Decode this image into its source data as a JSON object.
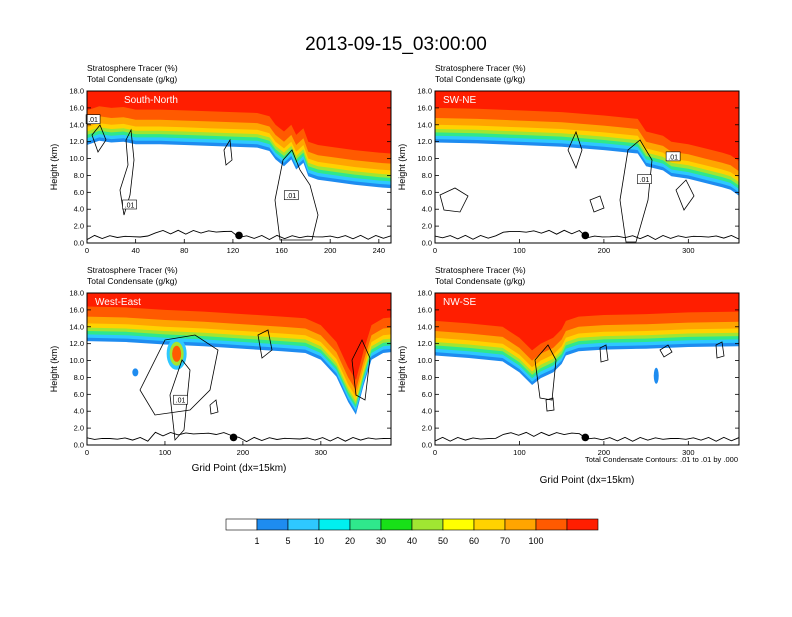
{
  "title": "2013-09-15_03:00:00",
  "colors": {
    "levels": [
      "#ffffff",
      "#1e8cf0",
      "#2ec8ff",
      "#00f0f0",
      "#2fe88c",
      "#18e018",
      "#a0e632",
      "#ffff00",
      "#ffd200",
      "#ffa500",
      "#ff5a00",
      "#ff1e00"
    ],
    "contour": "#000000",
    "marker": "#000000"
  },
  "legend": {
    "labels": [
      "1",
      "5",
      "10",
      "20",
      "30",
      "40",
      "50",
      "60",
      "70",
      "100"
    ]
  },
  "contour_note": "Total Condensate Contours: .01 to .01 by .000",
  "chart_data": [
    {
      "type": "heatmap",
      "panel": "South-North",
      "label1": "Stratosphere Tracer   (%)",
      "label2": "Total Condensate   (g/kg)",
      "ylabel": "Height (km)",
      "xlabel": "",
      "xlim": [
        0,
        250
      ],
      "ylim": [
        0,
        18
      ],
      "xticks": [
        "0",
        "40",
        "80",
        "120",
        "160",
        "200",
        "240"
      ],
      "yticks": [
        "0.0",
        "2.0",
        "4.0",
        "6.0",
        "8.0",
        "10.0",
        "12.0",
        "14.0",
        "16.0",
        "18.0"
      ],
      "tropopause": [
        [
          0,
          14.5
        ],
        [
          10,
          15.0
        ],
        [
          20,
          14.8
        ],
        [
          30,
          14.9
        ],
        [
          40,
          14.6
        ],
        [
          60,
          14.6
        ],
        [
          80,
          14.5
        ],
        [
          100,
          14.4
        ],
        [
          120,
          14.3
        ],
        [
          140,
          14.2
        ],
        [
          150,
          13.8
        ],
        [
          155,
          12.8
        ],
        [
          162,
          12.0
        ],
        [
          168,
          12.8
        ],
        [
          172,
          11.6
        ],
        [
          178,
          12.4
        ],
        [
          182,
          10.8
        ],
        [
          190,
          10.4
        ],
        [
          200,
          10.2
        ],
        [
          220,
          9.8
        ],
        [
          240,
          9.5
        ],
        [
          250,
          9.4
        ]
      ],
      "contour_labels": [
        {
          "text": ".01",
          "x": 5,
          "y": 14.6
        },
        {
          "text": ".01",
          "x": 35,
          "y": 4.5
        },
        {
          "text": ".01",
          "x": 168,
          "y": 5.6
        }
      ],
      "marker_x": 125
    },
    {
      "type": "heatmap",
      "panel": "SW-NE",
      "label1": "Stratosphere Tracer   (%)",
      "label2": "Total Condensate   (g/kg)",
      "ylabel": "Height (km)",
      "xlabel": "",
      "xlim": [
        0,
        360
      ],
      "ylim": [
        0,
        18
      ],
      "xticks": [
        "0",
        "100",
        "200",
        "300"
      ],
      "yticks": [
        "0.0",
        "2.0",
        "4.0",
        "6.0",
        "8.0",
        "10.0",
        "12.0",
        "14.0",
        "16.0",
        "18.0"
      ],
      "tropopause": [
        [
          0,
          14.8
        ],
        [
          50,
          14.7
        ],
        [
          100,
          14.5
        ],
        [
          150,
          14.3
        ],
        [
          200,
          13.9
        ],
        [
          240,
          13.5
        ],
        [
          250,
          12.0
        ],
        [
          270,
          11.5
        ],
        [
          280,
          10.8
        ],
        [
          300,
          10.5
        ],
        [
          320,
          10.0
        ],
        [
          340,
          9.5
        ],
        [
          350,
          9.2
        ],
        [
          360,
          8.5
        ]
      ],
      "contour_labels": [
        {
          "text": ".01",
          "x": 248,
          "y": 7.5
        },
        {
          "text": ".01",
          "x": 282,
          "y": 10.2
        }
      ],
      "marker_x": 178
    },
    {
      "type": "heatmap",
      "panel": "West-East",
      "label1": "Stratosphere Tracer   (%)",
      "label2": "Total Condensate   (g/kg)",
      "ylabel": "Height (km)",
      "xlabel": "Grid Point (dx=15km)",
      "xlim": [
        0,
        390
      ],
      "ylim": [
        0,
        18
      ],
      "xticks": [
        "0",
        "100",
        "200",
        "300"
      ],
      "yticks": [
        "0.0",
        "2.0",
        "4.0",
        "6.0",
        "8.0",
        "10.0",
        "12.0",
        "14.0",
        "16.0",
        "18.0"
      ],
      "tropopause": [
        [
          0,
          15.2
        ],
        [
          50,
          15.1
        ],
        [
          100,
          14.8
        ],
        [
          150,
          14.6
        ],
        [
          200,
          14.3
        ],
        [
          250,
          14.0
        ],
        [
          280,
          13.8
        ],
        [
          300,
          13.0
        ],
        [
          320,
          11.0
        ],
        [
          335,
          8.0
        ],
        [
          345,
          6.5
        ],
        [
          355,
          10.0
        ],
        [
          365,
          13.0
        ],
        [
          380,
          13.8
        ],
        [
          390,
          13.9
        ]
      ],
      "contour_labels": [
        {
          "text": ".01",
          "x": 120,
          "y": 5.3
        }
      ],
      "marker_x": 188
    },
    {
      "type": "heatmap",
      "panel": "NW-SE",
      "label1": "Stratosphere Tracer   (%)",
      "label2": "Total Condensate   (g/kg)",
      "ylabel": "Height (km)",
      "xlabel": "Grid Point (dx=15km)",
      "xlim": [
        0,
        360
      ],
      "ylim": [
        0,
        18
      ],
      "xticks": [
        "0",
        "100",
        "200",
        "300"
      ],
      "yticks": [
        "0.0",
        "2.0",
        "4.0",
        "6.0",
        "8.0",
        "10.0",
        "12.0",
        "14.0",
        "16.0",
        "18.0"
      ],
      "tropopause": [
        [
          0,
          13.5
        ],
        [
          40,
          13.2
        ],
        [
          80,
          12.8
        ],
        [
          100,
          11.5
        ],
        [
          115,
          10.0
        ],
        [
          125,
          10.8
        ],
        [
          140,
          11.5
        ],
        [
          150,
          12.5
        ],
        [
          155,
          13.5
        ],
        [
          170,
          14.0
        ],
        [
          200,
          14.2
        ],
        [
          250,
          14.3
        ],
        [
          300,
          14.5
        ],
        [
          360,
          14.6
        ]
      ],
      "contour_labels": [],
      "marker_x": 178
    }
  ]
}
